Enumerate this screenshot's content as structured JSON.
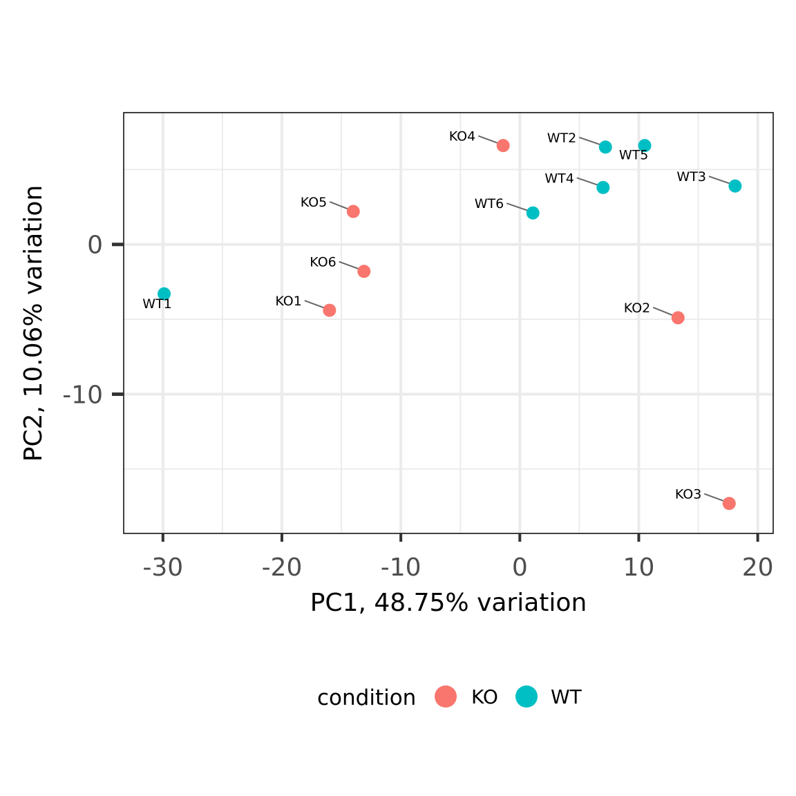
{
  "chart_data": {
    "type": "scatter",
    "xlabel": "PC1, 48.75% variation",
    "ylabel": "PC2, 10.06% variation",
    "xlim": [
      -33.3,
      21.3
    ],
    "ylim": [
      -19.3,
      8.8
    ],
    "x_ticks": [
      -30,
      -20,
      -10,
      0,
      10,
      20
    ],
    "x_tick_labels": [
      "-30",
      "-20",
      "-10",
      "0",
      "10",
      "20"
    ],
    "y_ticks": [
      0,
      -10
    ],
    "y_tick_labels": [
      "0",
      "-10"
    ],
    "grid": true,
    "legend": {
      "title": "condition",
      "position": "bottom",
      "entries": [
        {
          "label": "KO",
          "color": "#F8766D"
        },
        {
          "label": "WT",
          "color": "#00BFC4"
        }
      ]
    },
    "points": [
      {
        "label": "KO1",
        "x": -16.0,
        "y": -4.4,
        "group": "KO"
      },
      {
        "label": "KO2",
        "x": 13.3,
        "y": -4.9,
        "group": "KO"
      },
      {
        "label": "KO3",
        "x": 17.6,
        "y": -17.3,
        "group": "KO"
      },
      {
        "label": "KO4",
        "x": -1.4,
        "y": 6.6,
        "group": "KO"
      },
      {
        "label": "KO5",
        "x": -14.0,
        "y": 2.2,
        "group": "KO"
      },
      {
        "label": "KO6",
        "x": -13.1,
        "y": -1.8,
        "group": "KO"
      },
      {
        "label": "WT1",
        "x": -29.9,
        "y": -3.3,
        "group": "WT"
      },
      {
        "label": "WT2",
        "x": 7.2,
        "y": 6.5,
        "group": "WT"
      },
      {
        "label": "WT3",
        "x": 18.1,
        "y": 3.9,
        "group": "WT"
      },
      {
        "label": "WT4",
        "x": 7.0,
        "y": 3.8,
        "group": "WT"
      },
      {
        "label": "WT5",
        "x": 10.5,
        "y": 6.6,
        "group": "WT"
      },
      {
        "label": "WT6",
        "x": 1.1,
        "y": 2.1,
        "group": "WT"
      }
    ]
  }
}
